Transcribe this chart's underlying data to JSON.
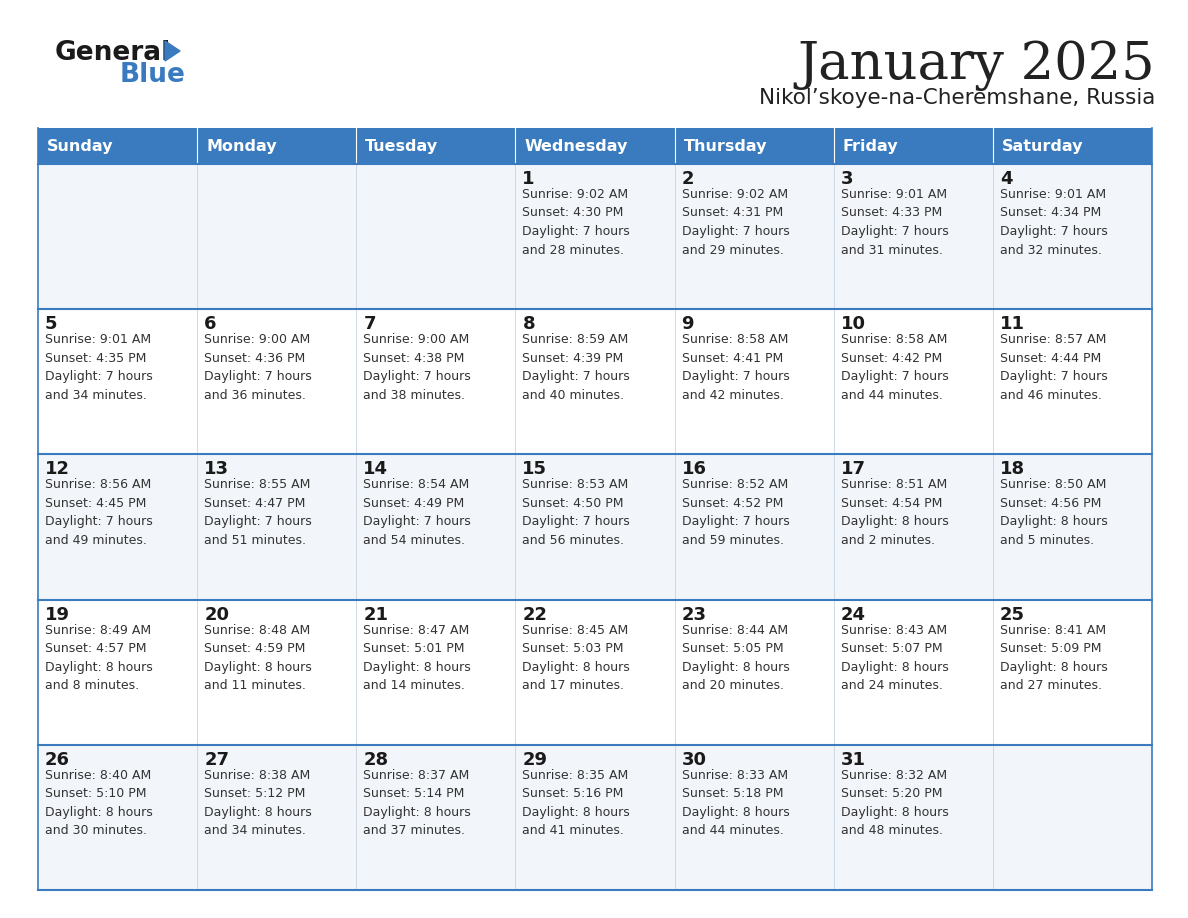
{
  "title": "January 2025",
  "subtitle": "Nikol’skoye-na-Cheremshane, Russia",
  "header_bg": "#3a7bbf",
  "header_text": "#ffffff",
  "row_bg_even": "#f2f6fa",
  "row_bg_odd": "#ffffff",
  "divider_color": "#3a7bbf",
  "text_color": "#222222",
  "day_num_color": "#1a1a1a",
  "info_color": "#333333",
  "days_of_week": [
    "Sunday",
    "Monday",
    "Tuesday",
    "Wednesday",
    "Thursday",
    "Friday",
    "Saturday"
  ],
  "calendar": [
    [
      {
        "day": "",
        "info": ""
      },
      {
        "day": "",
        "info": ""
      },
      {
        "day": "",
        "info": ""
      },
      {
        "day": "1",
        "info": "Sunrise: 9:02 AM\nSunset: 4:30 PM\nDaylight: 7 hours\nand 28 minutes."
      },
      {
        "day": "2",
        "info": "Sunrise: 9:02 AM\nSunset: 4:31 PM\nDaylight: 7 hours\nand 29 minutes."
      },
      {
        "day": "3",
        "info": "Sunrise: 9:01 AM\nSunset: 4:33 PM\nDaylight: 7 hours\nand 31 minutes."
      },
      {
        "day": "4",
        "info": "Sunrise: 9:01 AM\nSunset: 4:34 PM\nDaylight: 7 hours\nand 32 minutes."
      }
    ],
    [
      {
        "day": "5",
        "info": "Sunrise: 9:01 AM\nSunset: 4:35 PM\nDaylight: 7 hours\nand 34 minutes."
      },
      {
        "day": "6",
        "info": "Sunrise: 9:00 AM\nSunset: 4:36 PM\nDaylight: 7 hours\nand 36 minutes."
      },
      {
        "day": "7",
        "info": "Sunrise: 9:00 AM\nSunset: 4:38 PM\nDaylight: 7 hours\nand 38 minutes."
      },
      {
        "day": "8",
        "info": "Sunrise: 8:59 AM\nSunset: 4:39 PM\nDaylight: 7 hours\nand 40 minutes."
      },
      {
        "day": "9",
        "info": "Sunrise: 8:58 AM\nSunset: 4:41 PM\nDaylight: 7 hours\nand 42 minutes."
      },
      {
        "day": "10",
        "info": "Sunrise: 8:58 AM\nSunset: 4:42 PM\nDaylight: 7 hours\nand 44 minutes."
      },
      {
        "day": "11",
        "info": "Sunrise: 8:57 AM\nSunset: 4:44 PM\nDaylight: 7 hours\nand 46 minutes."
      }
    ],
    [
      {
        "day": "12",
        "info": "Sunrise: 8:56 AM\nSunset: 4:45 PM\nDaylight: 7 hours\nand 49 minutes."
      },
      {
        "day": "13",
        "info": "Sunrise: 8:55 AM\nSunset: 4:47 PM\nDaylight: 7 hours\nand 51 minutes."
      },
      {
        "day": "14",
        "info": "Sunrise: 8:54 AM\nSunset: 4:49 PM\nDaylight: 7 hours\nand 54 minutes."
      },
      {
        "day": "15",
        "info": "Sunrise: 8:53 AM\nSunset: 4:50 PM\nDaylight: 7 hours\nand 56 minutes."
      },
      {
        "day": "16",
        "info": "Sunrise: 8:52 AM\nSunset: 4:52 PM\nDaylight: 7 hours\nand 59 minutes."
      },
      {
        "day": "17",
        "info": "Sunrise: 8:51 AM\nSunset: 4:54 PM\nDaylight: 8 hours\nand 2 minutes."
      },
      {
        "day": "18",
        "info": "Sunrise: 8:50 AM\nSunset: 4:56 PM\nDaylight: 8 hours\nand 5 minutes."
      }
    ],
    [
      {
        "day": "19",
        "info": "Sunrise: 8:49 AM\nSunset: 4:57 PM\nDaylight: 8 hours\nand 8 minutes."
      },
      {
        "day": "20",
        "info": "Sunrise: 8:48 AM\nSunset: 4:59 PM\nDaylight: 8 hours\nand 11 minutes."
      },
      {
        "day": "21",
        "info": "Sunrise: 8:47 AM\nSunset: 5:01 PM\nDaylight: 8 hours\nand 14 minutes."
      },
      {
        "day": "22",
        "info": "Sunrise: 8:45 AM\nSunset: 5:03 PM\nDaylight: 8 hours\nand 17 minutes."
      },
      {
        "day": "23",
        "info": "Sunrise: 8:44 AM\nSunset: 5:05 PM\nDaylight: 8 hours\nand 20 minutes."
      },
      {
        "day": "24",
        "info": "Sunrise: 8:43 AM\nSunset: 5:07 PM\nDaylight: 8 hours\nand 24 minutes."
      },
      {
        "day": "25",
        "info": "Sunrise: 8:41 AM\nSunset: 5:09 PM\nDaylight: 8 hours\nand 27 minutes."
      }
    ],
    [
      {
        "day": "26",
        "info": "Sunrise: 8:40 AM\nSunset: 5:10 PM\nDaylight: 8 hours\nand 30 minutes."
      },
      {
        "day": "27",
        "info": "Sunrise: 8:38 AM\nSunset: 5:12 PM\nDaylight: 8 hours\nand 34 minutes."
      },
      {
        "day": "28",
        "info": "Sunrise: 8:37 AM\nSunset: 5:14 PM\nDaylight: 8 hours\nand 37 minutes."
      },
      {
        "day": "29",
        "info": "Sunrise: 8:35 AM\nSunset: 5:16 PM\nDaylight: 8 hours\nand 41 minutes."
      },
      {
        "day": "30",
        "info": "Sunrise: 8:33 AM\nSunset: 5:18 PM\nDaylight: 8 hours\nand 44 minutes."
      },
      {
        "day": "31",
        "info": "Sunrise: 8:32 AM\nSunset: 5:20 PM\nDaylight: 8 hours\nand 48 minutes."
      },
      {
        "day": "",
        "info": ""
      }
    ]
  ]
}
